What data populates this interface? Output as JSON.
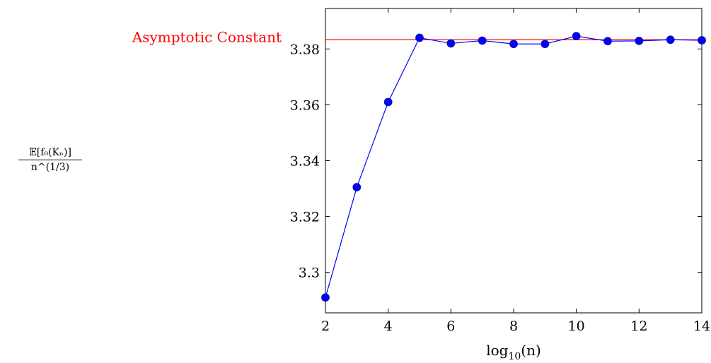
{
  "chart_data": {
    "type": "line",
    "title": "",
    "xlabel_base": "log",
    "xlabel_sub": "10",
    "xlabel_arg": "(n)",
    "ylabel_numerator": "𝔼[f₀(Kₙ)]",
    "ylabel_denominator": "n^(1/3)",
    "xlim": [
      2,
      14
    ],
    "ylim": [
      3.2855,
      3.3945
    ],
    "x_ticks": [
      2,
      4,
      6,
      8,
      10,
      12,
      14
    ],
    "y_ticks": [
      3.3,
      3.32,
      3.34,
      3.36,
      3.38
    ],
    "y_tick_labels": [
      "3.3",
      "3.32",
      "3.34",
      "3.36",
      "3.38"
    ],
    "grid": false,
    "series": [
      {
        "color": "#0000ff",
        "marker": "circle",
        "x": [
          2,
          3,
          4,
          5,
          6,
          7,
          8,
          9,
          10,
          11,
          12,
          13,
          14
        ],
        "y": [
          3.291,
          3.3305,
          3.361,
          3.384,
          3.382,
          3.383,
          3.3818,
          3.3818,
          3.3846,
          3.3828,
          3.3829,
          3.3833,
          3.3831
        ]
      }
    ],
    "reference_line": {
      "label": "Asymptotic Constant",
      "y": 3.3833,
      "color": "#ff0000"
    }
  }
}
